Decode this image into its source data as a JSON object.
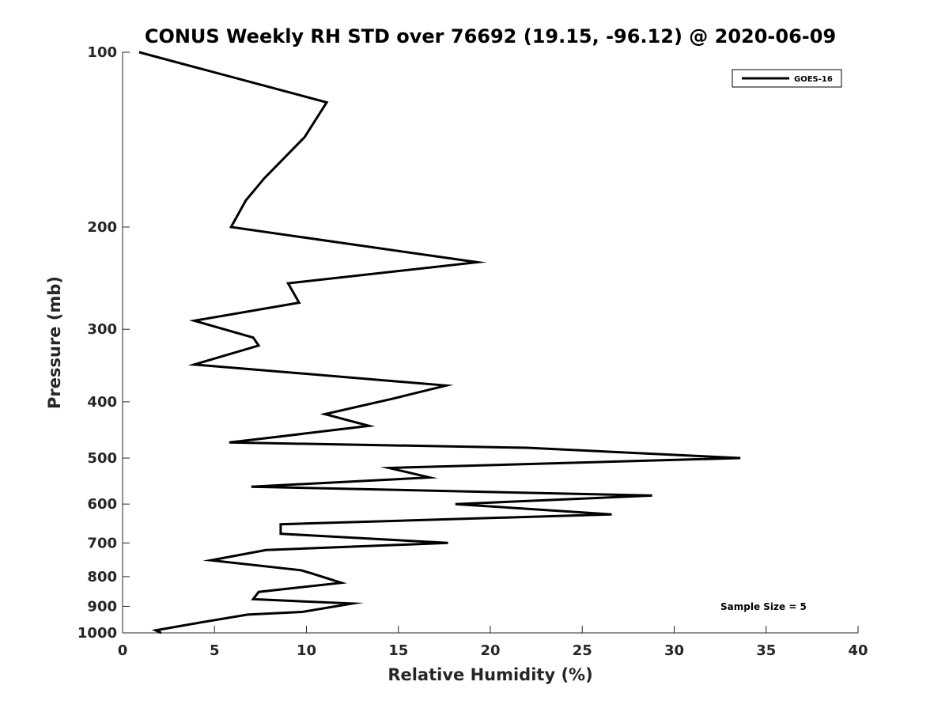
{
  "chart_data": {
    "type": "line",
    "title": "CONUS Weekly RH STD over 76692 (19.15, -96.12) @ 2020-06-09",
    "xlabel": "Relative Humidity (%)",
    "ylabel": "Pressure (mb)",
    "xlim": [
      0,
      40
    ],
    "ylim": [
      100,
      1000
    ],
    "y_scale": "log",
    "y_reversed": true,
    "grid": false,
    "legend_position": "top-right",
    "x_ticks": [
      0,
      5,
      10,
      15,
      20,
      25,
      30,
      35,
      40
    ],
    "x_tick_labels": [
      "0",
      "5",
      "10",
      "15",
      "20",
      "25",
      "30",
      "35",
      "40"
    ],
    "y_ticks": [
      100,
      200,
      300,
      400,
      500,
      600,
      700,
      800,
      900,
      1000
    ],
    "y_tick_labels": [
      "100",
      "200",
      "300",
      "400",
      "500",
      "600",
      "700",
      "800",
      "900",
      "1000"
    ],
    "series": [
      {
        "name": "GOES-16",
        "color": "#000000",
        "x": [
          0.9,
          11.1,
          9.9,
          7.7,
          6.7,
          5.9,
          19.3,
          9.0,
          9.6,
          3.9,
          7.1,
          7.4,
          3.9,
          17.6,
          14.7,
          11.0,
          13.4,
          8.3,
          5.8,
          22.0,
          33.6,
          14.5,
          16.7,
          7.0,
          28.8,
          18.1,
          26.6,
          8.6,
          8.6,
          17.7,
          7.8,
          4.8,
          9.7,
          10.3,
          11.9,
          7.4,
          7.1,
          12.5,
          9.8,
          6.8,
          4.2,
          1.8,
          2.1
        ],
        "y": [
          100,
          122,
          140,
          165,
          180,
          200,
          230,
          250,
          270,
          290,
          310,
          320,
          345,
          375,
          395,
          420,
          440,
          460,
          470,
          480,
          500,
          520,
          540,
          560,
          580,
          600,
          625,
          650,
          675,
          700,
          720,
          750,
          780,
          790,
          820,
          850,
          875,
          890,
          920,
          930,
          960,
          990,
          1000
        ]
      }
    ],
    "annotation": "Sample Size = 5"
  }
}
